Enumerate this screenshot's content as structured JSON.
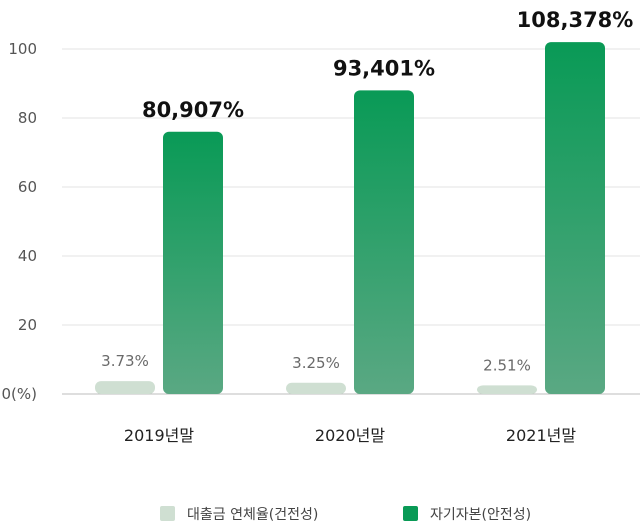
{
  "chart_data": {
    "type": "bar",
    "categories": [
      "2019년말",
      "2020년말",
      "2021년말"
    ],
    "ylim": [
      0,
      100
    ],
    "yticks": [
      {
        "value": 0,
        "label": "0(%)"
      },
      {
        "value": 20,
        "label": "20"
      },
      {
        "value": 40,
        "label": "40"
      },
      {
        "value": 60,
        "label": "60"
      },
      {
        "value": 80,
        "label": "80"
      },
      {
        "value": 100,
        "label": "100"
      }
    ],
    "grid": true,
    "legend_position": "bottom",
    "series": [
      {
        "name": "대출금 연체율(건전성)",
        "color": "#cfdfd2",
        "values": [
          3.73,
          3.25,
          2.51
        ],
        "labels": [
          "3.73%",
          "3.25%",
          "2.51%"
        ]
      },
      {
        "name": "자기자본(안전성)",
        "color": "#099a56",
        "color_light": "#5aa883",
        "values": [
          76,
          88,
          102
        ],
        "labels": [
          "80,907%",
          "93,401%",
          "108,378%"
        ]
      }
    ]
  }
}
